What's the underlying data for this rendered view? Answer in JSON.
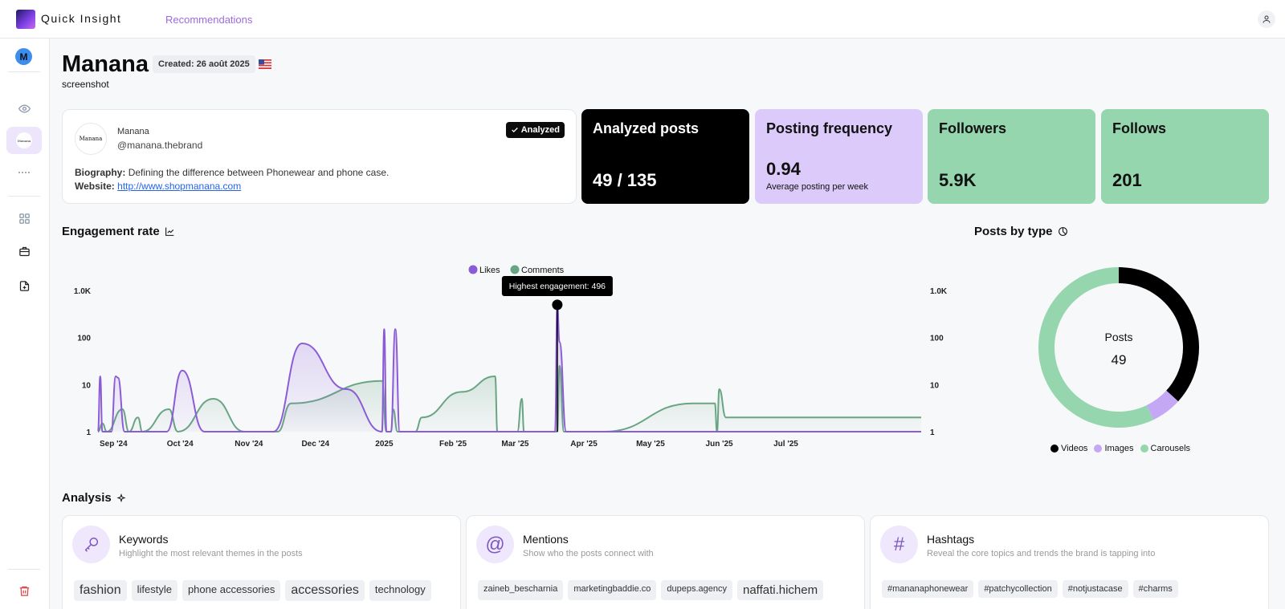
{
  "app": {
    "name": "Quick Insight",
    "nav_link": "Recommendations"
  },
  "sidebar": {
    "avatar_letter": "M",
    "items": [
      "eye-icon",
      "brand-logo",
      "dots-icon",
      "grid-icon",
      "briefcase-icon",
      "file-plus-icon",
      "trash-icon"
    ]
  },
  "header": {
    "title": "Manana",
    "created": "Created: 26 août 2025",
    "subtitle": "screenshot"
  },
  "profile": {
    "avatar_text": "Manana",
    "name": "Manana",
    "handle": "@manana.thebrand",
    "badge": "Analyzed",
    "bio_label": "Biography:",
    "bio": "Defining the difference between Phonewear and phone case.",
    "website_label": "Website:",
    "website": "http://www.shopmanana.com"
  },
  "stats": {
    "analyzed": {
      "label": "Analyzed posts",
      "value": "49 / 135"
    },
    "frequency": {
      "label": "Posting frequency",
      "value": "0.94",
      "note": "Average posting per week"
    },
    "followers": {
      "label": "Followers",
      "value": "5.9K"
    },
    "follows": {
      "label": "Follows",
      "value": "201"
    }
  },
  "engagement": {
    "title": "Engagement rate",
    "tooltip": "Highest engagement: 496"
  },
  "posts_by_type": {
    "title": "Posts by type"
  },
  "analysis": {
    "title": "Analysis",
    "keywords": {
      "title": "Keywords",
      "subtitle": "Highlight the most relevant themes in the posts",
      "tags": [
        {
          "text": "fashion",
          "size": "xl"
        },
        {
          "text": "lifestyle",
          "size": "m"
        },
        {
          "text": "phone accessories",
          "size": "m"
        },
        {
          "text": "accessories",
          "size": "xl"
        },
        {
          "text": "technology",
          "size": "m"
        }
      ]
    },
    "mentions": {
      "title": "Mentions",
      "subtitle": "Show who the posts connect with",
      "tags": [
        {
          "text": "zaineb_bescharnia",
          "size": "s"
        },
        {
          "text": "marketingbaddie.co",
          "size": "s"
        },
        {
          "text": "dupeps.agency",
          "size": "s"
        },
        {
          "text": "naffati.hichem",
          "size": "l"
        }
      ]
    },
    "hashtags": {
      "title": "Hashtags",
      "subtitle": "Reveal the core topics and trends the brand is tapping into",
      "tags": [
        {
          "text": "#mananaphonewear",
          "size": "s"
        },
        {
          "text": "#patchycollection",
          "size": "s"
        },
        {
          "text": "#notjustacase",
          "size": "s"
        },
        {
          "text": "#charms",
          "size": "s"
        }
      ]
    }
  },
  "colors": {
    "likes": "#8b5cd6",
    "comments": "#6aa583",
    "videos": "#000000",
    "images": "#c4a7f5",
    "carousels": "#95d6ae"
  },
  "chart_data": [
    {
      "type": "line",
      "title": "Engagement rate",
      "yscale": "log",
      "ylim": [
        1,
        1000
      ],
      "ytick_labels": [
        "1",
        "10",
        "100",
        "1.0K"
      ],
      "x_tick_labels": [
        "Sep '24",
        "Oct '24",
        "Nov '24",
        "Dec '24",
        "2025",
        "Feb '25",
        "Mar '25",
        "Apr '25",
        "May '25",
        "Jun '25",
        "Jul '25"
      ],
      "legend": [
        "Likes",
        "Comments"
      ],
      "legend_position": "top",
      "series": [
        {
          "name": "Likes",
          "points": [
            [
              "2024-08-25",
              1
            ],
            [
              "2024-08-26",
              15
            ],
            [
              "2024-08-27",
              1
            ],
            [
              "2024-08-31",
              1
            ],
            [
              "2024-09-02",
              15
            ],
            [
              "2024-09-03",
              14
            ],
            [
              "2024-09-06",
              1
            ],
            [
              "2024-09-25",
              1
            ],
            [
              "2024-10-02",
              20
            ],
            [
              "2024-10-12",
              1
            ],
            [
              "2024-11-12",
              1
            ],
            [
              "2024-11-25",
              75
            ],
            [
              "2024-12-15",
              8
            ],
            [
              "2024-12-31",
              1
            ],
            [
              "2025-01-01",
              150
            ],
            [
              "2025-01-02",
              1
            ],
            [
              "2025-01-04",
              1
            ],
            [
              "2025-01-06",
              150
            ],
            [
              "2025-01-08",
              1
            ],
            [
              "2025-03-19",
              1
            ],
            [
              "2025-03-20",
              496
            ],
            [
              "2025-03-21",
              80
            ],
            [
              "2025-03-24",
              1
            ],
            [
              "2025-08-31",
              1
            ]
          ]
        },
        {
          "name": "Comments",
          "points": [
            [
              "2024-08-25",
              1
            ],
            [
              "2024-08-27",
              1.5
            ],
            [
              "2024-08-29",
              1
            ],
            [
              "2024-09-05",
              3
            ],
            [
              "2024-09-08",
              1
            ],
            [
              "2024-09-12",
              2
            ],
            [
              "2024-09-14",
              1
            ],
            [
              "2024-09-26",
              3
            ],
            [
              "2024-09-30",
              1
            ],
            [
              "2024-10-16",
              5
            ],
            [
              "2024-10-30",
              1
            ],
            [
              "2024-11-14",
              1
            ],
            [
              "2024-11-20",
              4
            ],
            [
              "2024-12-31",
              12
            ],
            [
              "2025-01-02",
              1
            ],
            [
              "2025-01-04",
              1
            ],
            [
              "2025-01-05",
              3
            ],
            [
              "2025-01-07",
              1
            ],
            [
              "2025-01-15",
              1
            ],
            [
              "2025-01-18",
              2
            ],
            [
              "2025-02-05",
              7
            ],
            [
              "2025-02-20",
              15
            ],
            [
              "2025-02-21",
              1
            ],
            [
              "2025-03-02",
              1
            ],
            [
              "2025-03-04",
              5
            ],
            [
              "2025-03-05",
              1
            ],
            [
              "2025-03-20",
              1
            ],
            [
              "2025-03-21",
              25
            ],
            [
              "2025-03-23",
              1
            ],
            [
              "2025-04-10",
              1
            ],
            [
              "2025-05-20",
              4
            ],
            [
              "2025-05-30",
              4
            ],
            [
              "2025-05-31",
              1
            ],
            [
              "2025-06-01",
              8
            ],
            [
              "2025-06-04",
              2
            ],
            [
              "2025-08-31",
              2
            ]
          ]
        }
      ]
    },
    {
      "type": "pie",
      "title": "Posts by type",
      "center_label": "Posts",
      "center_value": "49",
      "legend_position": "bottom",
      "categories": [
        "Videos",
        "Images",
        "Carousels"
      ],
      "values": [
        18,
        3,
        28
      ]
    }
  ]
}
